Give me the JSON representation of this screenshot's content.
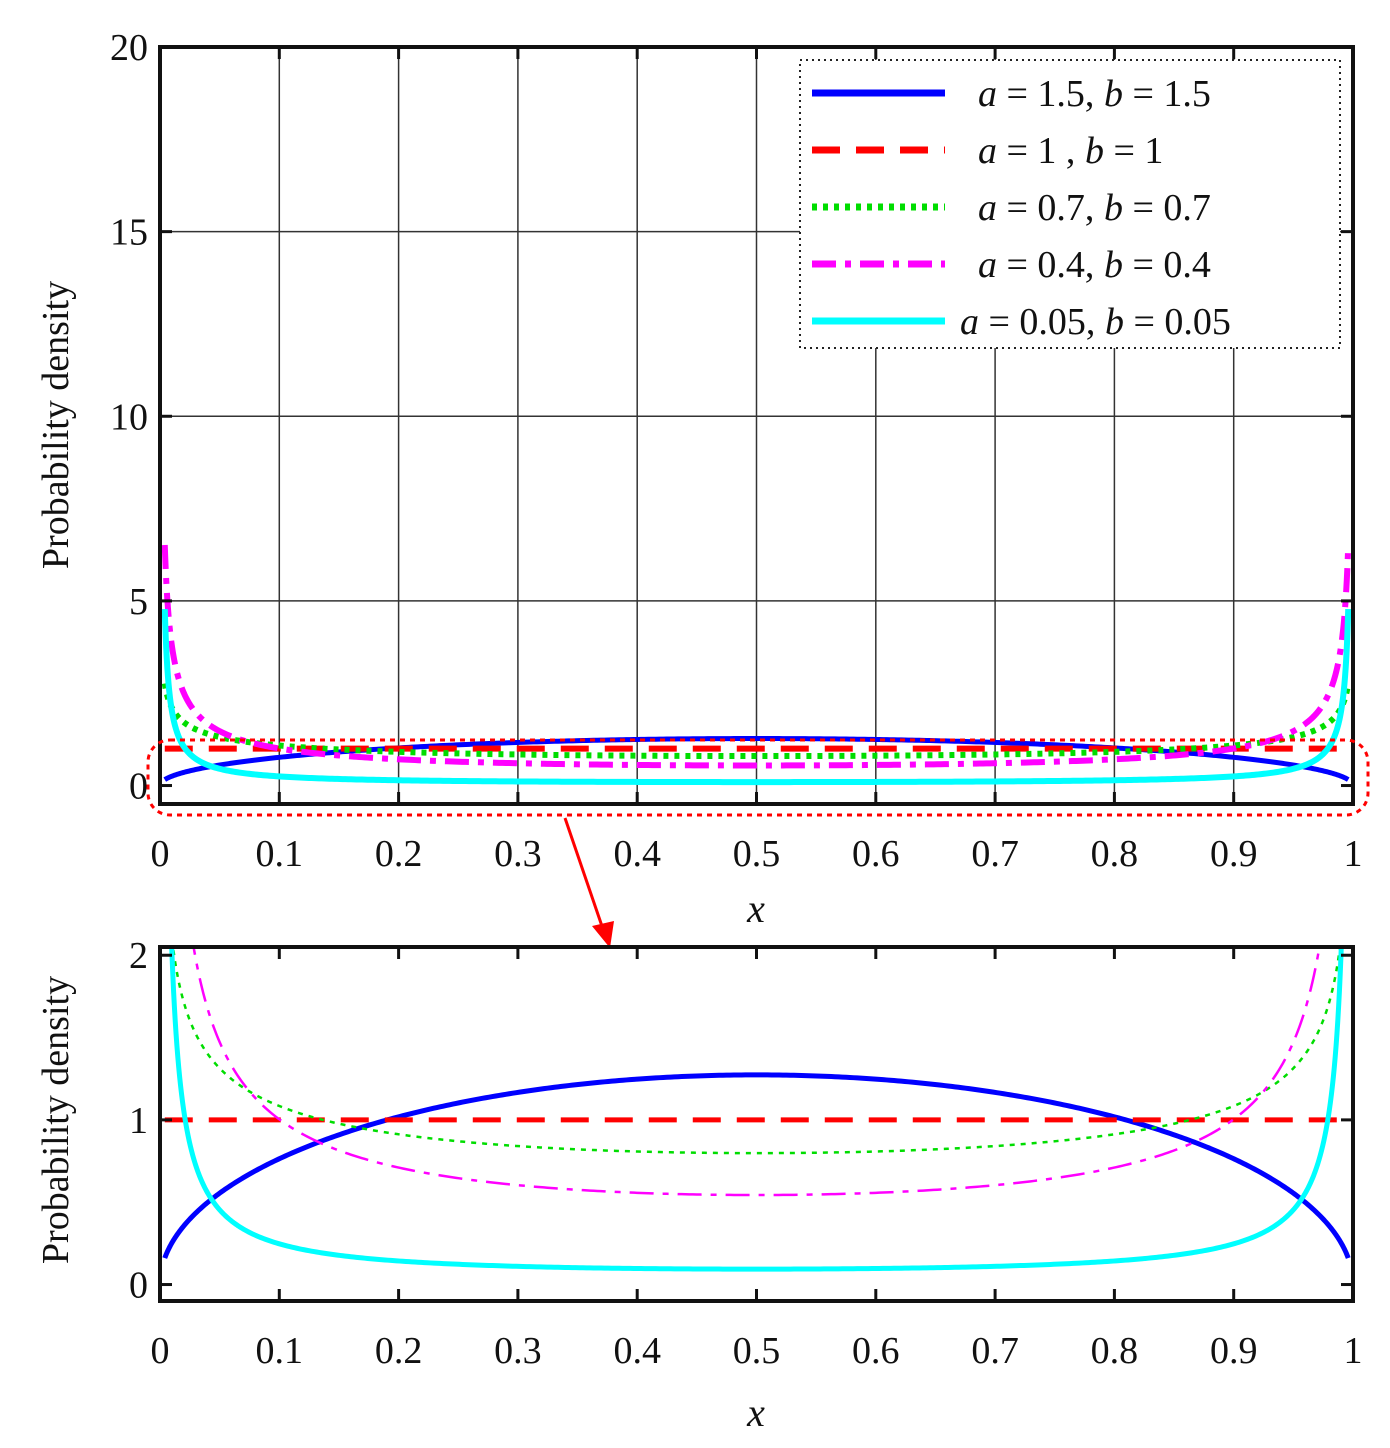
{
  "chart_data": [
    {
      "type": "line",
      "title": "",
      "xlabel": "x",
      "ylabel": "Probability density",
      "xlim": [
        0,
        1
      ],
      "ylim": [
        -0.5,
        20
      ],
      "grid": true,
      "xticks": [
        "0",
        "0.1",
        "0.2",
        "0.3",
        "0.4",
        "0.5",
        "0.6",
        "0.7",
        "0.8",
        "0.9",
        "1"
      ],
      "yticks": [
        "0",
        "5",
        "10",
        "15",
        "20"
      ],
      "legend_position": "top-right",
      "series": [
        {
          "name": "a = 1.5, b = 1.5",
          "label_parts": [
            "a",
            " = 1.5, ",
            "b",
            " = 1.5"
          ],
          "a": 1.5,
          "b": 1.5,
          "color": "#0000ff",
          "style": "solid"
        },
        {
          "name": "a = 1 , b = 1",
          "label_parts": [
            "a",
            " =  1  , ",
            "b",
            " =  1"
          ],
          "a": 1,
          "b": 1,
          "color": "#ff0000",
          "style": "dashed"
        },
        {
          "name": "a = 0.7, b = 0.7",
          "label_parts": [
            "a",
            " = 0.7, ",
            "b",
            " = 0.7"
          ],
          "a": 0.7,
          "b": 0.7,
          "color": "#00dd00",
          "style": "dotted"
        },
        {
          "name": "a = 0.4, b = 0.4",
          "label_parts": [
            "a",
            " = 0.4, ",
            "b",
            " = 0.4"
          ],
          "a": 0.4,
          "b": 0.4,
          "color": "#ff00ff",
          "style": "dash-dot"
        },
        {
          "name": "a = 0.05, b = 0.05",
          "label_parts": [
            "a",
            " = 0.05, ",
            "b",
            " = 0.05"
          ],
          "a": 0.05,
          "b": 0.05,
          "color": "#00ffff",
          "style": "solid"
        }
      ],
      "annotation": "zoom region highlighted by red dotted box, arrow points to lower panel"
    },
    {
      "type": "line",
      "title": "",
      "xlabel": "x",
      "ylabel": "Probability density",
      "xlim": [
        0,
        1
      ],
      "ylim": [
        -0.1,
        2.05
      ],
      "grid": false,
      "xticks": [
        "0",
        "0.1",
        "0.2",
        "0.3",
        "0.4",
        "0.5",
        "0.6",
        "0.7",
        "0.8",
        "0.9",
        "1"
      ],
      "yticks": [
        "0",
        "1",
        "2"
      ],
      "series_ref": "same five series as top panel (zoomed view)"
    }
  ]
}
